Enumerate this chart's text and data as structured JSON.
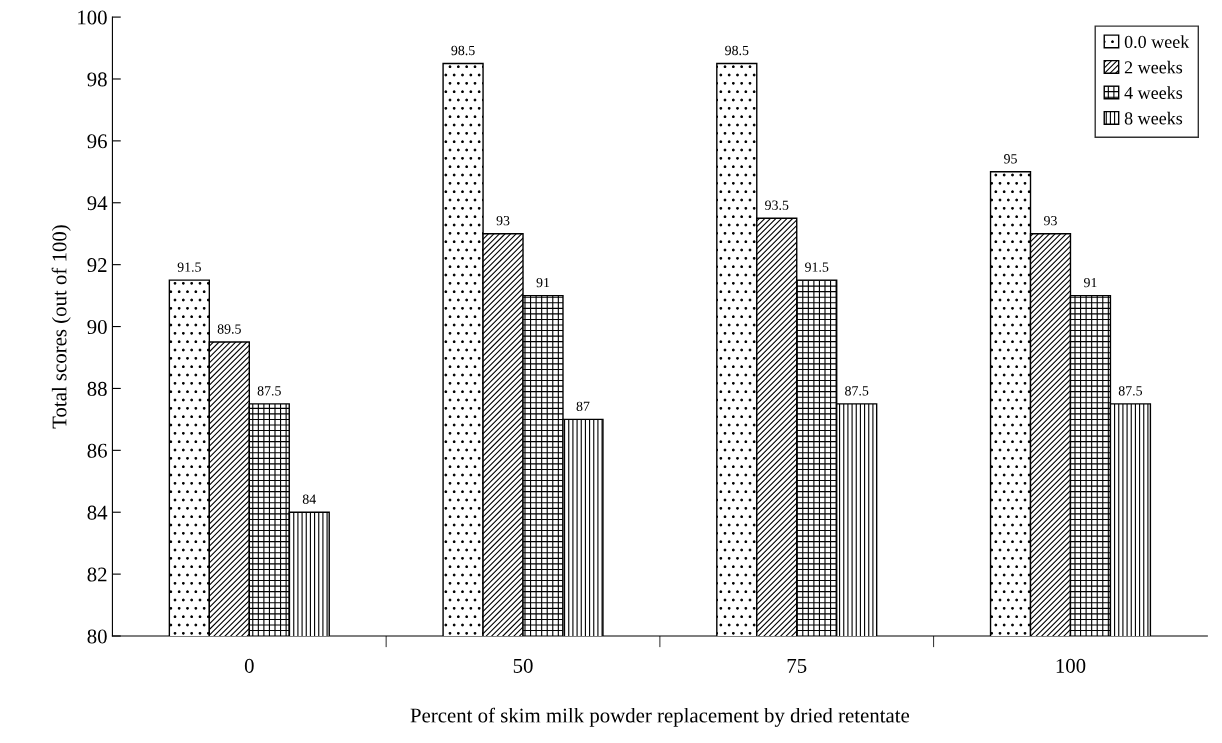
{
  "chart_data": {
    "type": "bar",
    "xlabel": "Percent of skim milk powder replacement by dried retentate",
    "ylabel": "Total scores (out of 100)",
    "categories": [
      "0",
      "50",
      "75",
      "100"
    ],
    "series": [
      {
        "name": "0.0 week",
        "color": "#000000",
        "values": [
          91.5,
          98.5,
          98.5,
          95
        ]
      },
      {
        "name": "2 weeks",
        "color": "#000000",
        "values": [
          89.5,
          93,
          93.5,
          93
        ]
      },
      {
        "name": "4 weeks",
        "color": "#000000",
        "values": [
          87.5,
          91,
          91.5,
          91
        ]
      },
      {
        "name": "8 weeks",
        "color": "#000000",
        "values": [
          84,
          87,
          87.5,
          87.5
        ]
      }
    ],
    "ylim": [
      80,
      100
    ],
    "yticks": [
      80,
      82,
      84,
      86,
      88,
      90,
      92,
      94,
      96,
      98,
      100
    ],
    "data_labels": true,
    "legend": "top right",
    "grid": false
  }
}
